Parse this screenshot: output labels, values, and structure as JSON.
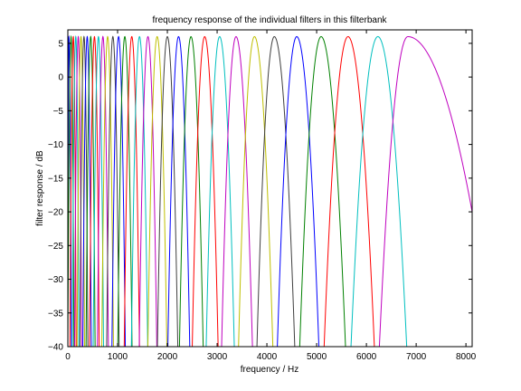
{
  "chart_data": {
    "type": "line",
    "title": "frequency response of the individual filters in this filterbank",
    "xlabel": "frequency / Hz",
    "ylabel": "filter response / dB",
    "xlim": [
      0,
      8125
    ],
    "ylim": [
      -40,
      7
    ],
    "xticks": [
      0,
      1000,
      2000,
      3000,
      4000,
      5000,
      6000,
      7000,
      8000
    ],
    "yticks": [
      -40,
      -35,
      -30,
      -25,
      -20,
      -15,
      -10,
      -5,
      0,
      5
    ],
    "grid": false,
    "legend": "none",
    "peak_db": 6,
    "line_colors": [
      "#0000ff",
      "#008000",
      "#ff0000",
      "#00bfbf",
      "#bf00bf",
      "#bfbf00",
      "#3f3f3f"
    ],
    "series": [
      {
        "center_hz": 20,
        "x": [
          0,
          20,
          73
        ],
        "y": [
          -31,
          6,
          -40
        ]
      },
      {
        "center_hz": 65,
        "x": [
          0,
          65,
          122
        ],
        "y": [
          -40,
          6,
          -40
        ]
      },
      {
        "center_hz": 110,
        "x": [
          42,
          110,
          167
        ],
        "y": [
          -40,
          6,
          -40
        ]
      },
      {
        "center_hz": 160,
        "x": [
          88,
          160,
          222
        ],
        "y": [
          -40,
          6,
          -40
        ]
      },
      {
        "center_hz": 210,
        "x": [
          135,
          210,
          277
        ],
        "y": [
          -40,
          6,
          -40
        ]
      },
      {
        "center_hz": 265,
        "x": [
          186,
          265,
          336
        ],
        "y": [
          -40,
          6,
          -40
        ]
      },
      {
        "center_hz": 325,
        "x": [
          241,
          325,
          402
        ],
        "y": [
          -40,
          6,
          -40
        ]
      },
      {
        "center_hz": 390,
        "x": [
          301,
          390,
          472
        ],
        "y": [
          -40,
          6,
          -40
        ]
      },
      {
        "center_hz": 460,
        "x": [
          366,
          460,
          548
        ],
        "y": [
          -40,
          6,
          -40
        ]
      },
      {
        "center_hz": 535,
        "x": [
          436,
          535,
          630
        ],
        "y": [
          -40,
          6,
          -40
        ]
      },
      {
        "center_hz": 615,
        "x": [
          510,
          615,
          718
        ],
        "y": [
          -40,
          6,
          -40
        ]
      },
      {
        "center_hz": 705,
        "x": [
          594,
          705,
          815
        ],
        "y": [
          -40,
          6,
          -40
        ]
      },
      {
        "center_hz": 800,
        "x": [
          682,
          800,
          917
        ],
        "y": [
          -40,
          6,
          -40
        ]
      },
      {
        "center_hz": 905,
        "x": [
          780,
          905,
          1030
        ],
        "y": [
          -40,
          6,
          -40
        ]
      },
      {
        "center_hz": 1020,
        "x": [
          886,
          1020,
          1155
        ],
        "y": [
          -40,
          6,
          -40
        ]
      },
      {
        "center_hz": 1145,
        "x": [
          1003,
          1145,
          1290
        ],
        "y": [
          -40,
          6,
          -40
        ]
      },
      {
        "center_hz": 1285,
        "x": [
          1133,
          1285,
          1440
        ],
        "y": [
          -40,
          6,
          -40
        ]
      },
      {
        "center_hz": 1440,
        "x": [
          1277,
          1440,
          1605
        ],
        "y": [
          -40,
          6,
          -40
        ]
      },
      {
        "center_hz": 1610,
        "x": [
          1435,
          1610,
          1788
        ],
        "y": [
          -40,
          6,
          -40
        ]
      },
      {
        "center_hz": 1795,
        "x": [
          1608,
          1795,
          1990
        ],
        "y": [
          -40,
          6,
          -40
        ]
      },
      {
        "center_hz": 2000,
        "x": [
          1800,
          2000,
          2210
        ],
        "y": [
          -40,
          6,
          -40
        ]
      },
      {
        "center_hz": 2225,
        "x": [
          2010,
          2225,
          2450
        ],
        "y": [
          -40,
          6,
          -40
        ]
      },
      {
        "center_hz": 2475,
        "x": [
          2243,
          2475,
          2720
        ],
        "y": [
          -40,
          6,
          -40
        ]
      },
      {
        "center_hz": 2750,
        "x": [
          2500,
          2750,
          3020
        ],
        "y": [
          -40,
          6,
          -40
        ]
      },
      {
        "center_hz": 3050,
        "x": [
          2780,
          3050,
          3345
        ],
        "y": [
          -40,
          6,
          -40
        ]
      },
      {
        "center_hz": 3380,
        "x": [
          3090,
          3380,
          3710
        ],
        "y": [
          -40,
          6,
          -40
        ]
      },
      {
        "center_hz": 3750,
        "x": [
          3430,
          3750,
          4120
        ],
        "y": [
          -40,
          6,
          -40
        ]
      },
      {
        "center_hz": 4150,
        "x": [
          3800,
          4150,
          4560
        ],
        "y": [
          -40,
          6,
          -40
        ]
      },
      {
        "center_hz": 4600,
        "x": [
          4210,
          4600,
          5045
        ],
        "y": [
          -40,
          6,
          -40
        ]
      },
      {
        "center_hz": 5090,
        "x": [
          4660,
          5090,
          5580
        ],
        "y": [
          -40,
          6,
          -40
        ]
      },
      {
        "center_hz": 5630,
        "x": [
          5150,
          5630,
          6160
        ],
        "y": [
          -40,
          6,
          -40
        ]
      },
      {
        "center_hz": 6230,
        "x": [
          5690,
          6230,
          6810
        ],
        "y": [
          -40,
          6,
          -40
        ]
      },
      {
        "center_hz": 6830,
        "x": [
          6260,
          6830,
          8125
        ],
        "y": [
          -40,
          6,
          -20
        ]
      }
    ]
  }
}
